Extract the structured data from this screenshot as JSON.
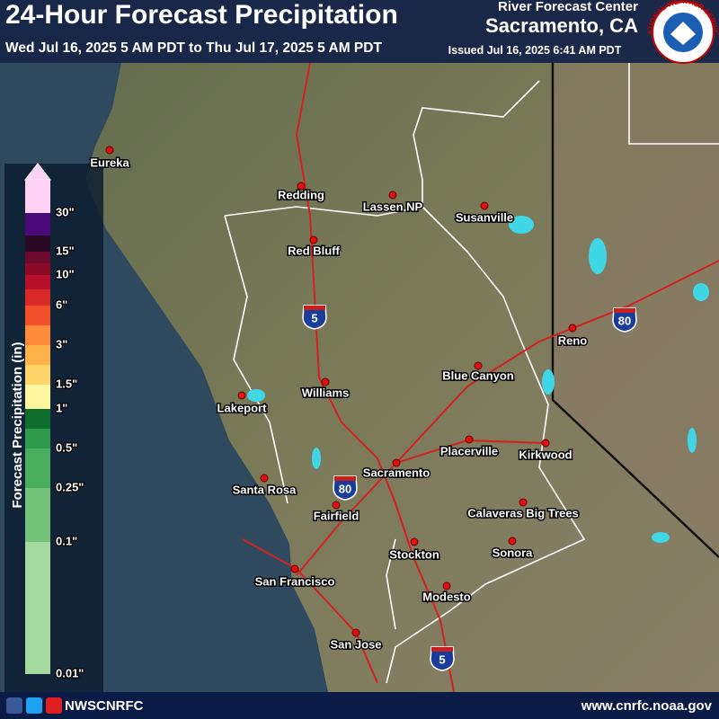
{
  "header": {
    "title": "24-Hour Forecast Precipitation",
    "period": "Wed Jul 16, 2025 5 AM PDT to Thu Jul 17, 2025 5 AM PDT",
    "office_line1": "River Forecast Center",
    "office_line2": "Sacramento, CA",
    "issued": "Issued Jul 16, 2025 6:41 AM PDT",
    "logo_text": "NATIONAL WEATHER SERVICE"
  },
  "legend": {
    "title": "Forecast Precipitation (in)",
    "labels": [
      "30\"",
      "15\"",
      "10\"",
      "6\"",
      "3\"",
      "1.5\"",
      "1\"",
      "0.5\"",
      "0.25\"",
      "0.1\"",
      "0.01\""
    ],
    "colors": [
      "#ffd2f5",
      "#4b0a7a",
      "#2a0a24",
      "#6e0a2e",
      "#8c0a28",
      "#b4102a",
      "#d82a28",
      "#f2502a",
      "#ff8a3a",
      "#ffb24a",
      "#ffd56a",
      "#fff7a0",
      "#0f6e2e",
      "#2e9a4c",
      "#48ae5e",
      "#74c27a",
      "#a6d99e",
      "#d6f0cc"
    ]
  },
  "cities": [
    "Eureka",
    "Redding",
    "Lassen NP",
    "Susanville",
    "Red Bluff",
    "Reno",
    "Blue Canyon",
    "Williams",
    "Lakeport",
    "Placerville",
    "Kirkwood",
    "Sacramento",
    "Santa Rosa",
    "Fairfield",
    "Calaveras Big Trees",
    "Stockton",
    "Sonora",
    "San Francisco",
    "Modesto",
    "San Jose"
  ],
  "interstates": [
    "5",
    "80",
    "80",
    "5"
  ],
  "footer": {
    "handle": "NWSCNRFC",
    "url": "www.cnrfc.noaa.gov"
  }
}
